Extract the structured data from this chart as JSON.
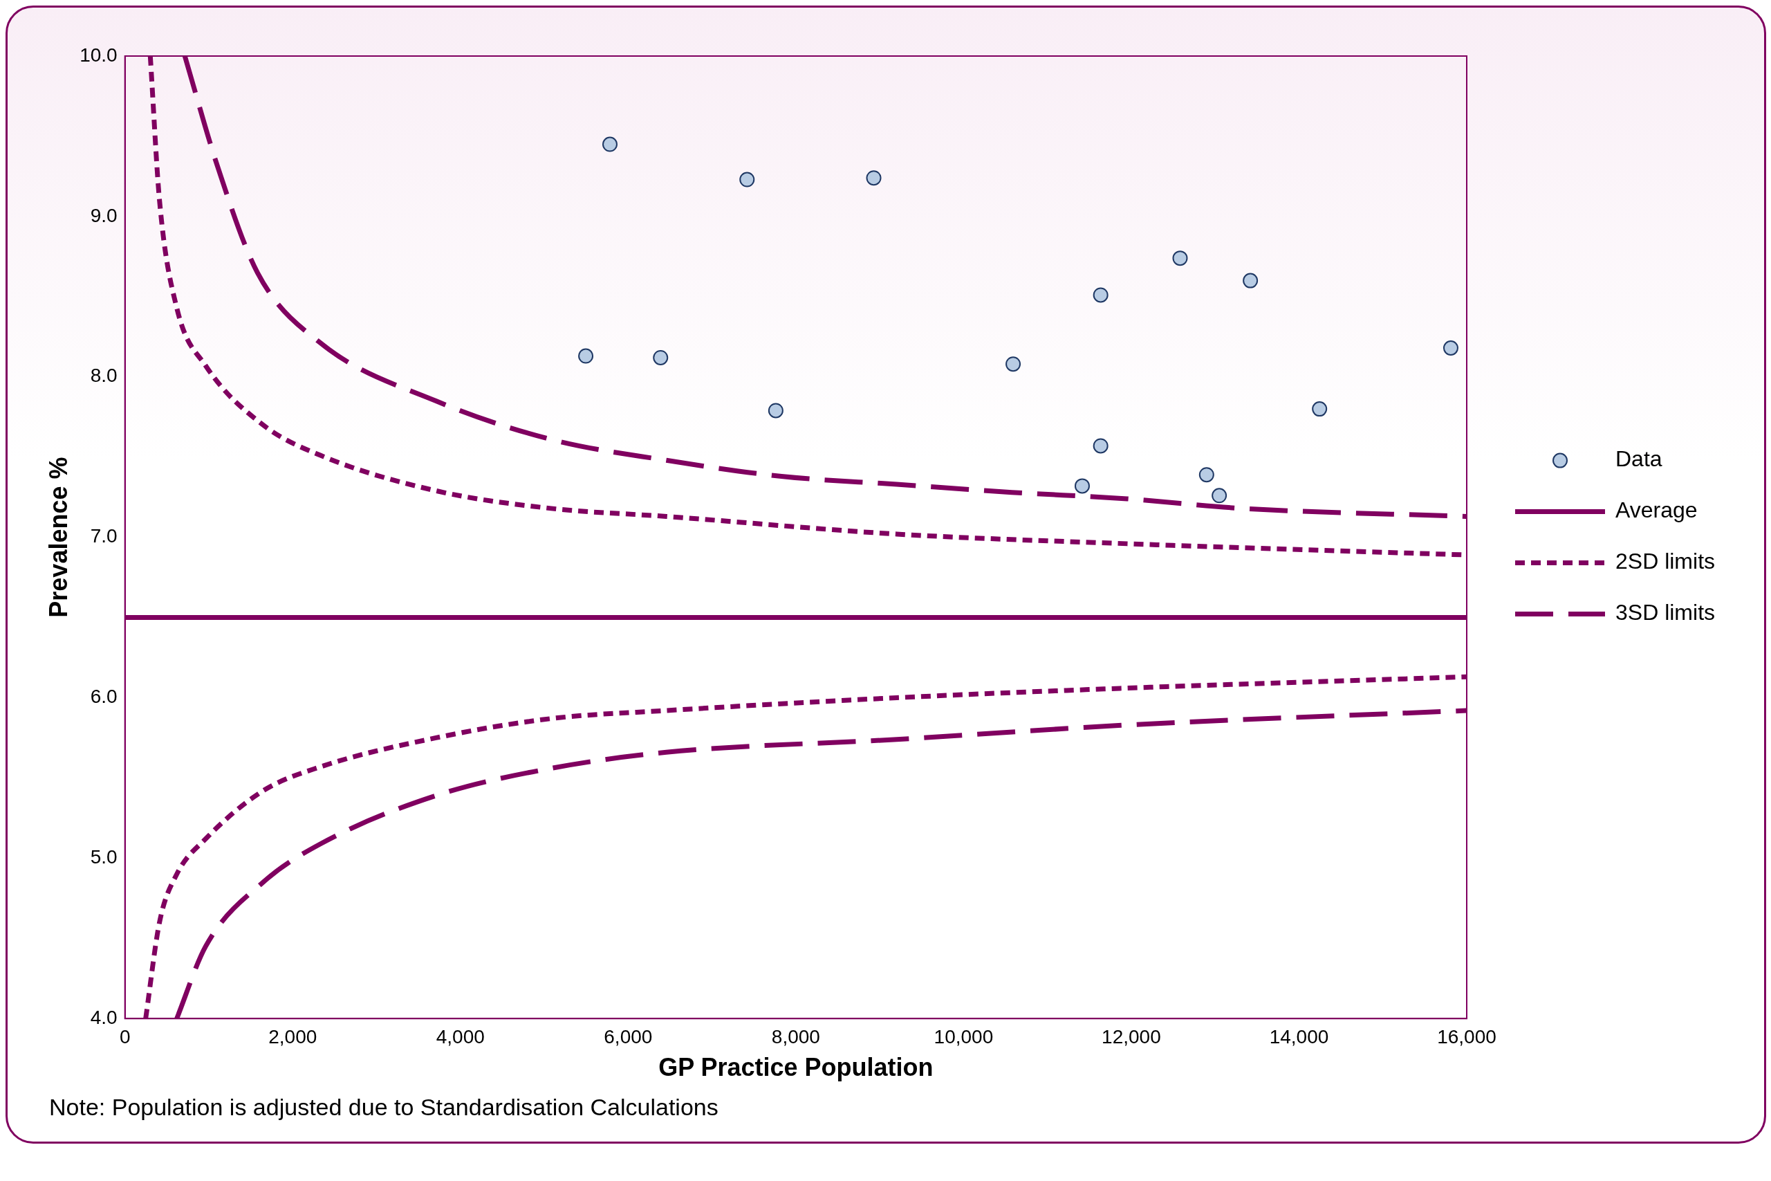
{
  "chart_data": {
    "type": "scatter",
    "xlabel": "GP Practice Population",
    "ylabel": "Prevalence %",
    "xlim": [
      0,
      16000
    ],
    "xticks": [
      {
        "value": 0,
        "label": "0"
      },
      {
        "value": 2000,
        "label": "2,000"
      },
      {
        "value": 4000,
        "label": "4,000"
      },
      {
        "value": 6000,
        "label": "6,000"
      },
      {
        "value": 8000,
        "label": "8,000"
      },
      {
        "value": 10000,
        "label": "10,000"
      },
      {
        "value": 12000,
        "label": "12,000"
      },
      {
        "value": 14000,
        "label": "14,000"
      },
      {
        "value": 16000,
        "label": "16,000"
      }
    ],
    "ylim": [
      4,
      10
    ],
    "yticks": [
      {
        "value": 4,
        "label": "4.0"
      },
      {
        "value": 5,
        "label": "5.0"
      },
      {
        "value": 6,
        "label": "6.0"
      },
      {
        "value": 7,
        "label": "7.0"
      },
      {
        "value": 8,
        "label": "8.0"
      },
      {
        "value": 9,
        "label": "9.0"
      },
      {
        "value": 10,
        "label": "10.0"
      }
    ],
    "grid": false,
    "legend": "right",
    "series": [
      {
        "name": "Data",
        "marker": "circle",
        "color": "#b8cce4",
        "x": [
          5495,
          5783,
          6387,
          7418,
          7761,
          8929,
          10591,
          11415,
          11635,
          11635,
          12582,
          12898,
          13049,
          13420,
          14245,
          15810
        ],
        "values": [
          8.13,
          9.45,
          8.12,
          9.23,
          7.79,
          9.24,
          8.08,
          7.32,
          8.51,
          7.57,
          8.74,
          7.39,
          7.26,
          8.6,
          7.8,
          8.18
        ]
      },
      {
        "name": "Average",
        "type": "line",
        "color": "#800060",
        "line_style": "solid",
        "x": [
          0,
          16000
        ],
        "values": [
          6.5,
          6.5
        ]
      },
      {
        "name": "2SD limits",
        "type": "line",
        "color": "#800060",
        "line_style": "dotted",
        "x": [
          302,
          412,
          618,
          962,
          1648,
          2335,
          3709,
          5082,
          6456,
          9203,
          11951,
          16000
        ],
        "values": [
          10.0,
          9.1,
          8.43,
          8.07,
          7.7,
          7.51,
          7.29,
          7.18,
          7.13,
          7.02,
          6.96,
          6.89
        ]
      },
      {
        "type": "line",
        "color": "#800060",
        "line_style": "dotted",
        "x": [
          247,
          412,
          618,
          962,
          1648,
          2335,
          3709,
          5082,
          6456,
          9203,
          11951,
          16000
        ],
        "values": [
          4.0,
          4.6,
          4.9,
          5.12,
          5.42,
          5.57,
          5.75,
          5.87,
          5.92,
          6.0,
          6.06,
          6.13
        ]
      },
      {
        "name": "3SD limits",
        "type": "line",
        "color": "#800060",
        "line_style": "dashed",
        "x": [
          714,
          1099,
          1580,
          2335,
          3709,
          5082,
          6456,
          7830,
          9203,
          10577,
          11951,
          13324,
          16000
        ],
        "values": [
          10.0,
          9.32,
          8.65,
          8.21,
          7.85,
          7.61,
          7.48,
          7.38,
          7.33,
          7.28,
          7.24,
          7.18,
          7.13
        ]
      },
      {
        "type": "line",
        "color": "#800060",
        "line_style": "dashed",
        "x": [
          618,
          962,
          1648,
          2335,
          3709,
          5082,
          6456,
          9203,
          11951,
          16000
        ],
        "values": [
          4.0,
          4.45,
          4.85,
          5.09,
          5.39,
          5.56,
          5.66,
          5.74,
          5.83,
          5.92
        ]
      }
    ],
    "annotations": [
      "Note: Population is adjusted due to Standardisation Calculations"
    ]
  }
}
